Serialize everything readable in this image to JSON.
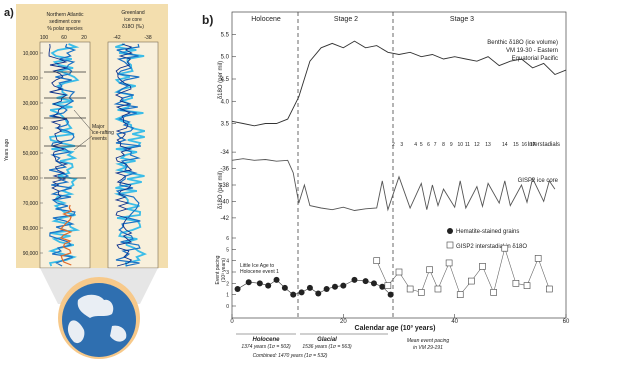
{
  "panel_a": {
    "label": "a)",
    "col1_title": [
      "Northern Atlantic",
      "sediment core",
      "% polar species"
    ],
    "col2_title": [
      "Greenland",
      "ice core",
      "δ18O (‰)"
    ],
    "col1_ticks": [
      "100",
      "60",
      "20"
    ],
    "col2_ticks": [
      "-42",
      "-38"
    ],
    "y_ticks": [
      "10,000",
      "20,000",
      "30,000",
      "40,000",
      "50,000",
      "60,000",
      "70,000",
      "80,000",
      "90,000"
    ],
    "ylabel": "Years ago",
    "annotation": [
      "Major",
      "ice-rafting",
      "events"
    ],
    "colors": {
      "panel_bg": "#f3deae",
      "col_bg": "#f8f0dc",
      "globe_ocean": "#2f6fb0",
      "globe_land": "#e9eef4",
      "globe_rim": "#f7c98a",
      "trace_blue": "#1b72c4",
      "trace_cyan": "#3bbde8",
      "trace_dark": "#0c2f8a",
      "trace_orange": "#e06a2a"
    },
    "icons": [
      "globe-icon"
    ]
  },
  "panel_b": {
    "label": "b)",
    "headers": [
      "Holocene",
      "Stage 2",
      "Stage 3"
    ],
    "top": {
      "ylabel": "δ18O (per mil)",
      "ticks": [
        "3.5",
        "4.0",
        "4.5",
        "5.0",
        "5.5"
      ],
      "legend": [
        "Benthic δ18O (ice volume)",
        "VM 19-30 - Eastern",
        "Equatorial Pacific"
      ]
    },
    "interstadials_label": "Interstadials",
    "interstadial_numbers": [
      "2",
      "3",
      "4",
      "5",
      "6",
      "7",
      "8",
      "9",
      "10",
      "11",
      "12",
      "13",
      "14",
      "15",
      "16",
      "17"
    ],
    "middle": {
      "ylabel": "δ18O (per mil)",
      "ticks": [
        "-34",
        "-36",
        "-38",
        "-40",
        "-42"
      ],
      "legend": "GISP2 ice core"
    },
    "bottom": {
      "ylabel": [
        "Event pacing",
        "(10³ years)"
      ],
      "ticks": [
        "0",
        "1",
        "2",
        "3",
        "4",
        "5",
        "6"
      ],
      "legend": [
        "Hematite-stained grains",
        "GISP2 interstadial in δ18O"
      ],
      "note": [
        "Little Ice Age to",
        "Holocene event 1"
      ]
    },
    "x_axis": {
      "label": "Calendar age (10³ years)",
      "ticks": [
        "0",
        "20",
        "40",
        "60"
      ]
    },
    "footer": {
      "holocene": "Holocene",
      "holocene_stats": "1374 years (1σ = 502)",
      "glacial": "Glacial",
      "glacial_stats": "1536 years (1σ = 563)",
      "combined": "Combined: 1470 years (1σ = 532)",
      "mean": [
        "Mean event pacing",
        "in VM 29-191"
      ]
    }
  },
  "chart_data": [
    {
      "type": "line",
      "title": "Benthic δ18O (ice volume) VM 19-30 - Eastern Equatorial Pacific",
      "xlabel": "Calendar age (10³ years)",
      "ylabel": "δ18O (per mil)",
      "xlim": [
        0,
        60
      ],
      "ylim": [
        5.6,
        3.4
      ],
      "x": [
        0,
        2,
        4,
        6,
        8,
        10,
        12,
        14,
        16,
        18,
        20,
        22,
        24,
        26,
        28,
        30,
        32,
        34,
        36,
        38,
        40,
        42,
        44,
        46,
        48,
        50,
        52,
        54,
        56,
        58,
        60
      ],
      "y": [
        3.55,
        3.5,
        3.45,
        3.5,
        3.5,
        3.6,
        4.1,
        4.9,
        5.2,
        5.3,
        5.2,
        5.35,
        5.2,
        5.25,
        5.1,
        5.05,
        5.1,
        5.0,
        5.05,
        4.95,
        5.0,
        4.95,
        4.9,
        5.0,
        4.8,
        4.9,
        4.95,
        4.75,
        4.85,
        4.6,
        4.7
      ]
    },
    {
      "type": "line",
      "title": "GISP2 ice core",
      "xlabel": "Calendar age (10³ years)",
      "ylabel": "δ18O (per mil)",
      "xlim": [
        0,
        60
      ],
      "ylim": [
        -33.5,
        -42.5
      ],
      "x": [
        0,
        2,
        4,
        6,
        8,
        10,
        11,
        12,
        13,
        14,
        16,
        18,
        20,
        22,
        24,
        26,
        27,
        28,
        30,
        32,
        34,
        35,
        36,
        37,
        38,
        40,
        41,
        42,
        44,
        45,
        46,
        48,
        49,
        50,
        52,
        53,
        54,
        56,
        57,
        58
      ],
      "y": [
        -35.0,
        -34.8,
        -35.0,
        -34.9,
        -35.1,
        -35.0,
        -36.5,
        -40.2,
        -38.0,
        -40.5,
        -40.8,
        -41.0,
        -40.7,
        -41.1,
        -40.9,
        -40.8,
        -37.5,
        -41.0,
        -37.0,
        -40.8,
        -37.8,
        -41.0,
        -38.0,
        -40.5,
        -38.5,
        -40.7,
        -37.5,
        -40.8,
        -38.2,
        -40.6,
        -37.8,
        -40.2,
        -37.5,
        -40.5,
        -38.0,
        -40.1,
        -37.2,
        -40.0,
        -37.5,
        -38.5
      ]
    },
    {
      "type": "scatter",
      "title": "Event pacing",
      "xlabel": "Calendar age (10³ years)",
      "ylabel": "Event pacing (10³ years)",
      "xlim": [
        0,
        60
      ],
      "ylim": [
        0,
        6
      ],
      "series": [
        {
          "name": "Hematite-stained grains",
          "x": [
            1,
            3,
            5,
            6.5,
            8,
            9.5,
            11,
            12.5,
            14,
            15.5,
            17,
            18.5,
            20,
            22,
            24,
            25.5,
            27,
            28.5
          ],
          "y": [
            1.5,
            2.1,
            2.0,
            1.8,
            2.3,
            1.6,
            1.0,
            1.2,
            1.6,
            1.1,
            1.5,
            1.7,
            1.8,
            2.3,
            2.2,
            2.0,
            1.7,
            1.0
          ]
        },
        {
          "name": "GISP2 interstadial in δ18O",
          "x": [
            26,
            28,
            30,
            32,
            34,
            35.5,
            37,
            39,
            41,
            43,
            45,
            47,
            49,
            51,
            53,
            55,
            57
          ],
          "y": [
            4.0,
            1.8,
            3.0,
            1.5,
            1.2,
            3.2,
            1.5,
            3.8,
            1.0,
            2.2,
            3.5,
            1.2,
            5.1,
            2.0,
            1.8,
            4.2,
            1.5
          ]
        }
      ]
    }
  ]
}
